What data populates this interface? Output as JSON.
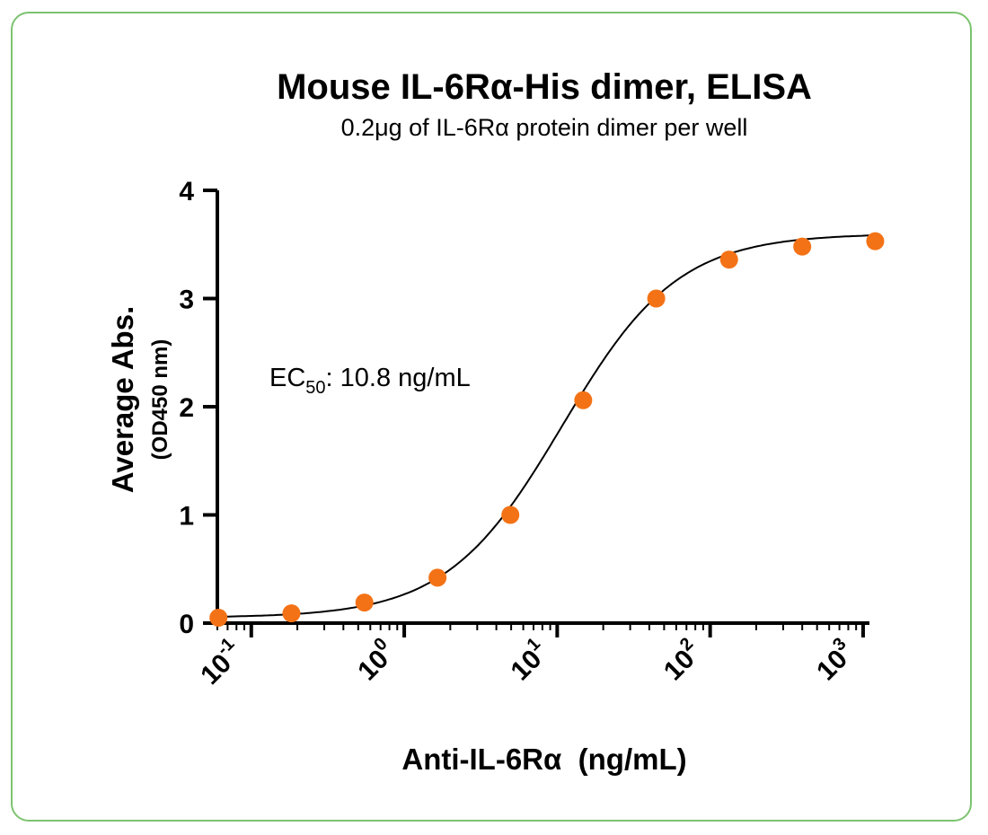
{
  "chart_data": {
    "type": "scatter",
    "title": "Mouse IL-6Rα-His dimer, ELISA",
    "subtitle": "0.2μg of IL-6Rα protein dimer per well",
    "xlabel": "Anti-IL-6Rα  (ng/mL)",
    "ylabel": "Average Abs.",
    "ylabel_sub": "(OD450 nm)",
    "x_scale": "log10",
    "xlim": [
      0.06,
      1100
    ],
    "ylim": [
      0,
      4
    ],
    "yticks": [
      "0",
      "1",
      "2",
      "3",
      "4"
    ],
    "xticks": [
      {
        "base": "10",
        "exp": "-1"
      },
      {
        "base": "10",
        "exp": "0"
      },
      {
        "base": "10",
        "exp": "1"
      },
      {
        "base": "10",
        "exp": "2"
      },
      {
        "base": "10",
        "exp": "3"
      }
    ],
    "series": [
      {
        "x": [
          0.061,
          0.183,
          0.549,
          1.65,
          4.94,
          14.8,
          44.4,
          133,
          400,
          1200
        ],
        "y": [
          0.05,
          0.09,
          0.19,
          0.42,
          1.0,
          2.06,
          3.0,
          3.36,
          3.48,
          3.53
        ],
        "color": "#f47216",
        "fit": "4PL"
      }
    ],
    "annotation": {
      "prefix": "EC",
      "subscript": "50",
      "suffix": ": 10.8 ng/mL"
    },
    "grid": false,
    "legend": "none"
  },
  "colors": {
    "border": "#7cc36f",
    "marker": "#f47216",
    "curve": "#000000"
  }
}
